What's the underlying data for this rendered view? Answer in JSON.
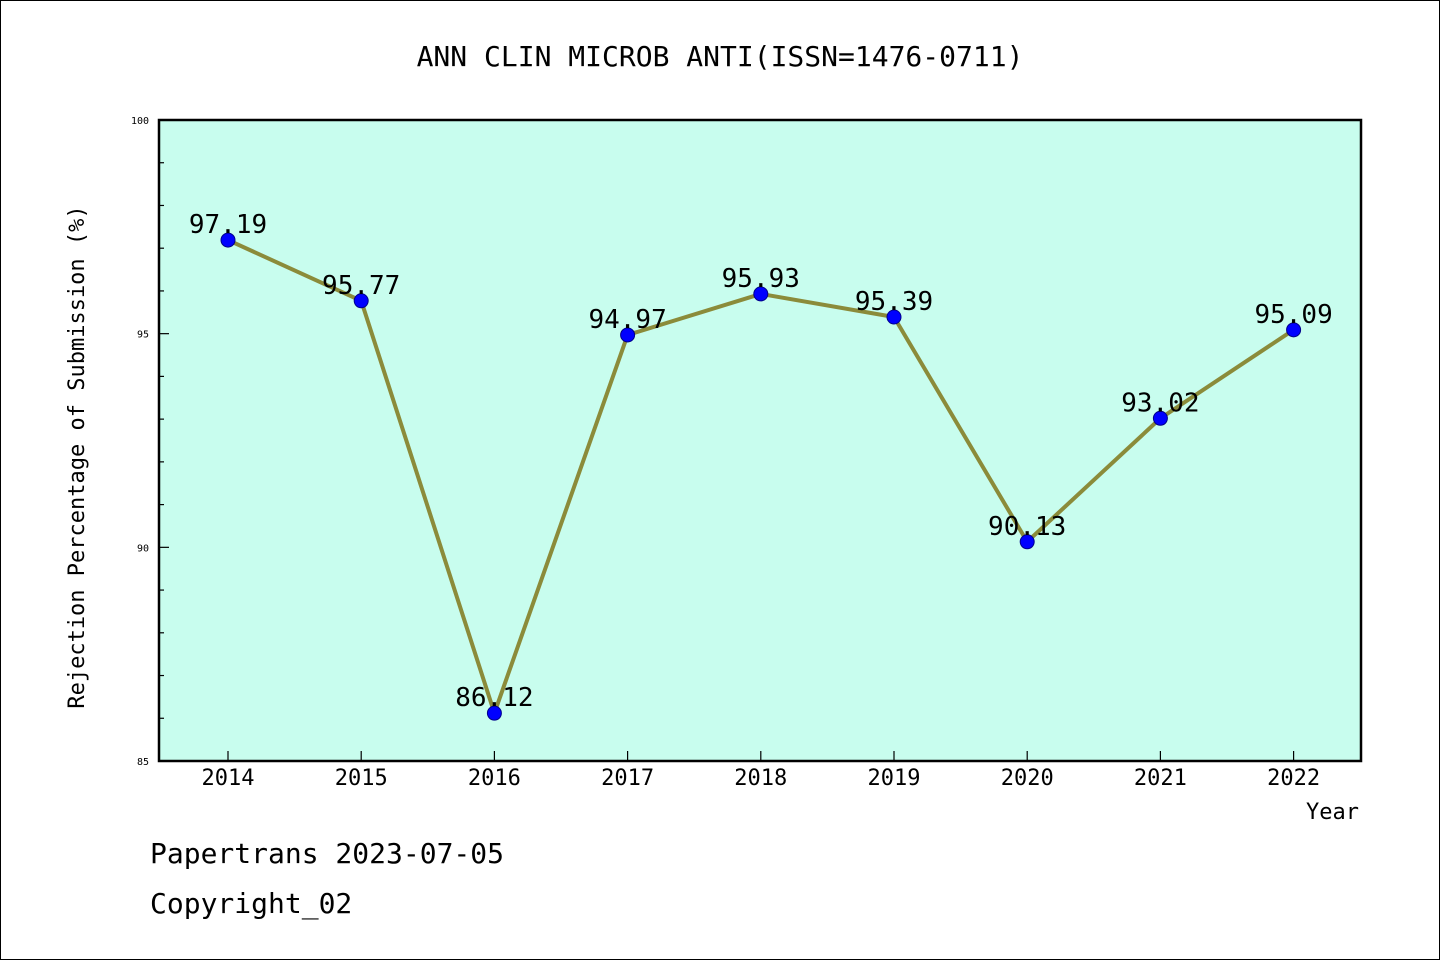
{
  "chart_data": {
    "type": "line",
    "title": "ANN CLIN MICROB ANTI(ISSN=1476-0711)",
    "xlabel": "Year",
    "ylabel": "Rejection Percentage of Submission (%)",
    "categories": [
      "2014",
      "2015",
      "2016",
      "2017",
      "2018",
      "2019",
      "2020",
      "2021",
      "2022"
    ],
    "series": [
      {
        "values": [
          97.19,
          95.77,
          86.12,
          94.97,
          95.93,
          95.39,
          90.13,
          93.02,
          95.09
        ],
        "labels": [
          "97.19",
          "95.77",
          "86.12",
          "94.97",
          "95.93",
          "95.39",
          "90.13",
          "93.02",
          "95.09"
        ]
      }
    ],
    "ylim": [
      85,
      100
    ],
    "yticks": [
      85,
      90,
      95,
      100
    ],
    "grid": false,
    "colors": {
      "plot_bg": "#c8fdee",
      "line": "#8b8b3a",
      "marker": "#0000ff"
    }
  },
  "footer": {
    "line1": "Papertrans 2023-07-05",
    "line2": "Copyright_02"
  }
}
